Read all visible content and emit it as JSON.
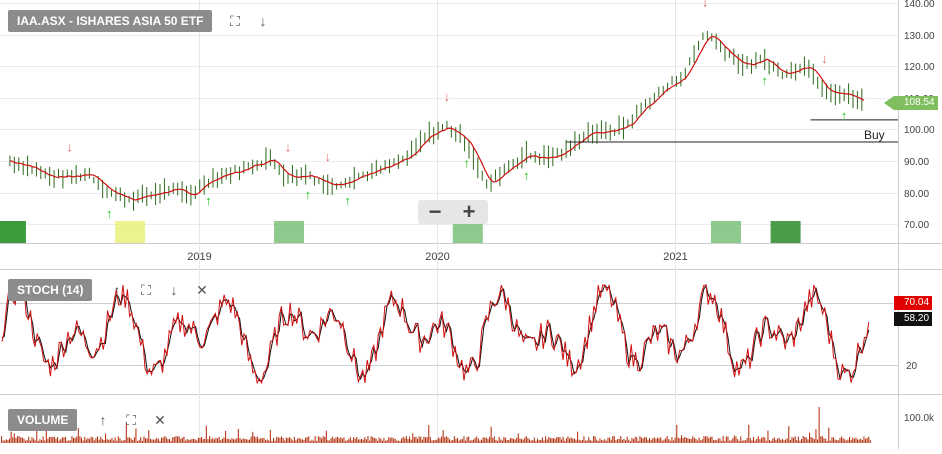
{
  "header": {
    "title": "IAA.ASX - ISHARES ASIA 50 ETF",
    "stoch_label": "STOCH (14)",
    "volume_label": "VOLUME",
    "zoom_out": "−",
    "zoom_in": "+"
  },
  "icons": {
    "expand": "expand-icon",
    "down": "arrow-down-icon",
    "up": "arrow-up-icon",
    "close": "close-icon"
  },
  "colors": {
    "price_line": "#d01010",
    "bar": "#2a6a1a",
    "sell_arrow": "#e07070",
    "buy_arrow": "#22cc22",
    "volume": "#b83a1a",
    "label_bg": "#8c8c8c",
    "current_price_tag": "#7fbf5f",
    "stoch_tag_red": "#e00000",
    "stoch_tag_black": "#111111"
  },
  "chart_data": [
    {
      "type": "line",
      "panel": "price",
      "title": "IAA.ASX - ISHARES ASIA 50 ETF",
      "x_range": [
        "2018-03",
        "2021-10"
      ],
      "x_ticks": [
        "2019",
        "2020",
        "2021"
      ],
      "y_ticks": [
        "70.00",
        "80.00",
        "90.00",
        "100.00",
        "110.00",
        "120.00",
        "130.00",
        "140.00"
      ],
      "ylim": [
        64,
        141
      ],
      "grid": true,
      "series": [
        {
          "x": [
            "2018-03",
            "2018-04",
            "2018-05",
            "2018-06",
            "2018-07",
            "2018-08",
            "2018-09",
            "2018-10",
            "2018-11",
            "2018-12",
            "2019-01",
            "2019-02",
            "2019-03",
            "2019-04",
            "2019-05",
            "2019-06",
            "2019-07",
            "2019-08",
            "2019-09",
            "2019-10",
            "2019-11",
            "2019-12",
            "2020-01",
            "2020-02",
            "2020-03",
            "2020-04",
            "2020-05",
            "2020-06",
            "2020-07",
            "2020-08",
            "2020-09",
            "2020-10",
            "2020-11",
            "2020-12",
            "2021-01",
            "2021-02",
            "2021-03",
            "2021-04",
            "2021-05",
            "2021-06",
            "2021-07",
            "2021-08",
            "2021-09",
            "2021-10"
          ],
          "values": [
            90,
            88,
            85,
            85,
            86,
            80,
            78,
            79,
            81,
            79,
            84,
            86,
            88,
            91,
            85,
            86,
            82,
            84,
            86,
            88,
            91,
            98,
            101,
            96,
            82,
            88,
            92,
            91,
            93,
            99,
            99,
            101,
            108,
            113,
            118,
            131,
            125,
            120,
            122,
            117,
            121,
            113,
            111,
            108.54
          ]
        }
      ],
      "sell_signals": [
        "2018-06",
        "2019-05",
        "2019-07",
        "2020-01",
        "2021-02",
        "2021-08"
      ],
      "buy_signals": [
        "2018-08",
        "2019-01",
        "2019-06",
        "2019-08",
        "2020-02",
        "2020-05",
        "2021-05",
        "2021-09"
      ],
      "annotation": "Buy",
      "buy_levels": [
        96,
        103
      ],
      "current_price": "108.54"
    },
    {
      "type": "line",
      "panel": "stochastic",
      "title": "STOCH (14)",
      "y_ticks": [
        "20",
        "80"
      ],
      "ylim": [
        0,
        100
      ],
      "k_last": "70.04",
      "d_last": "58.20"
    },
    {
      "type": "bar",
      "panel": "volume",
      "title": "VOLUME",
      "y_ticks": [
        "100.0k"
      ]
    }
  ]
}
